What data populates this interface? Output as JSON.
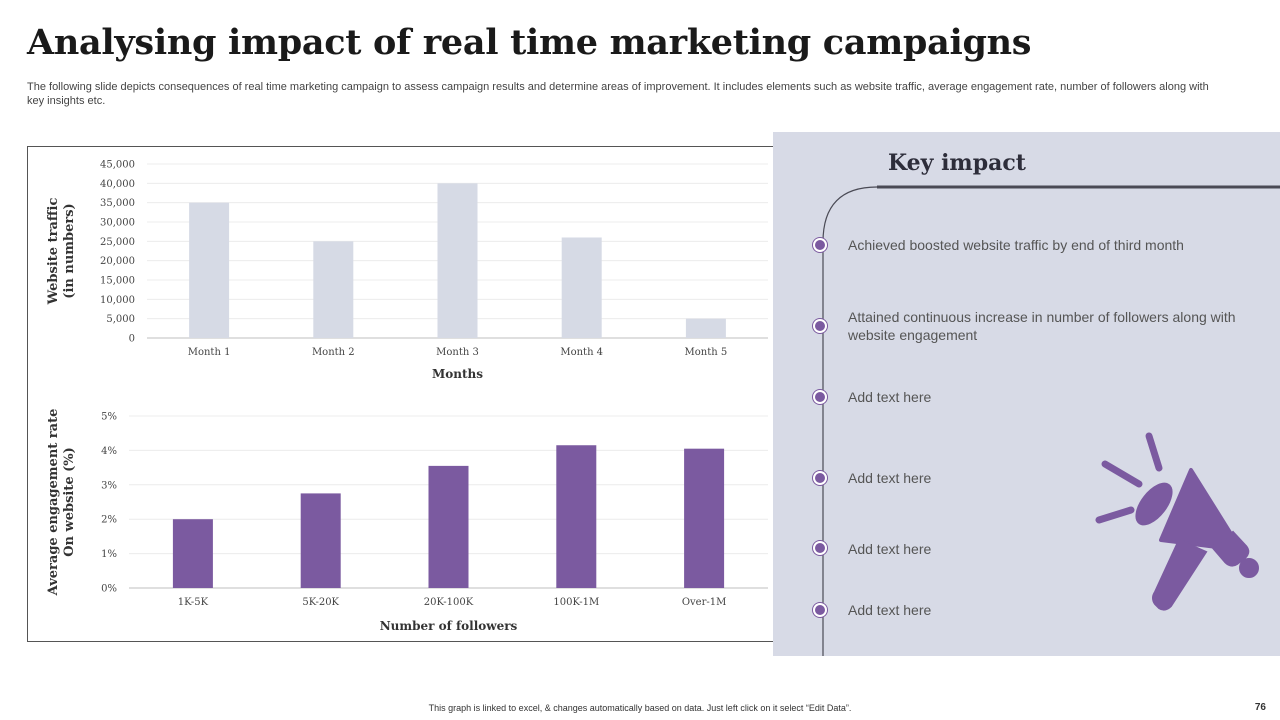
{
  "slide": {
    "title": "Analysing impact of real time marketing campaigns",
    "subtitle": "The following slide depicts consequences of real time marketing campaign to assess campaign results and determine areas of improvement. It includes elements such as website traffic, average engagement rate, number of followers along with key insights etc.",
    "footer": "This graph is linked to excel, & changes automatically based on data. Just left click on it select “Edit Data”.",
    "page_number": "76"
  },
  "key_impact": {
    "heading": "Key impact",
    "items": [
      "Achieved boosted website traffic by end of third month",
      "Attained continuous increase in number of followers along with website engagement",
      "Add text here",
      "Add text here",
      "Add text here",
      "Add text here"
    ],
    "icon": "megaphone-icon",
    "accent_color": "#7b5aa0"
  },
  "chart_data": [
    {
      "type": "bar",
      "title": "",
      "categories": [
        "Month 1",
        "Month 2",
        "Month 3",
        "Month 4",
        "Month 5"
      ],
      "values": [
        35000,
        25000,
        40000,
        26000,
        5000
      ],
      "xlabel": "Months",
      "ylabel_lines": [
        "Website traffic",
        "(in numbers)"
      ],
      "ylim": [
        0,
        45000
      ],
      "yticks": [
        0,
        5000,
        10000,
        15000,
        20000,
        25000,
        30000,
        35000,
        40000,
        45000
      ],
      "ytick_labels": [
        "0",
        "5,000",
        "10,000",
        "15,000",
        "20,000",
        "25,000",
        "30,000",
        "35,000",
        "40,000",
        "45,000"
      ],
      "grid": true,
      "bar_color": "#d6dae5"
    },
    {
      "type": "bar",
      "title": "",
      "categories": [
        "1K-5K",
        "5K-20K",
        "20K-100K",
        "100K-1M",
        "Over-1M"
      ],
      "values": [
        2.0,
        2.75,
        3.55,
        4.15,
        4.05
      ],
      "xlabel": "Number of followers",
      "ylabel_lines": [
        "Average engagement rate",
        "On website (%)"
      ],
      "ylim": [
        0,
        5
      ],
      "yticks": [
        0,
        1,
        2,
        3,
        4,
        5
      ],
      "ytick_labels": [
        "0%",
        "1%",
        "2%",
        "3%",
        "4%",
        "5%"
      ],
      "grid": true,
      "bar_color": "#7b5aa0"
    }
  ]
}
